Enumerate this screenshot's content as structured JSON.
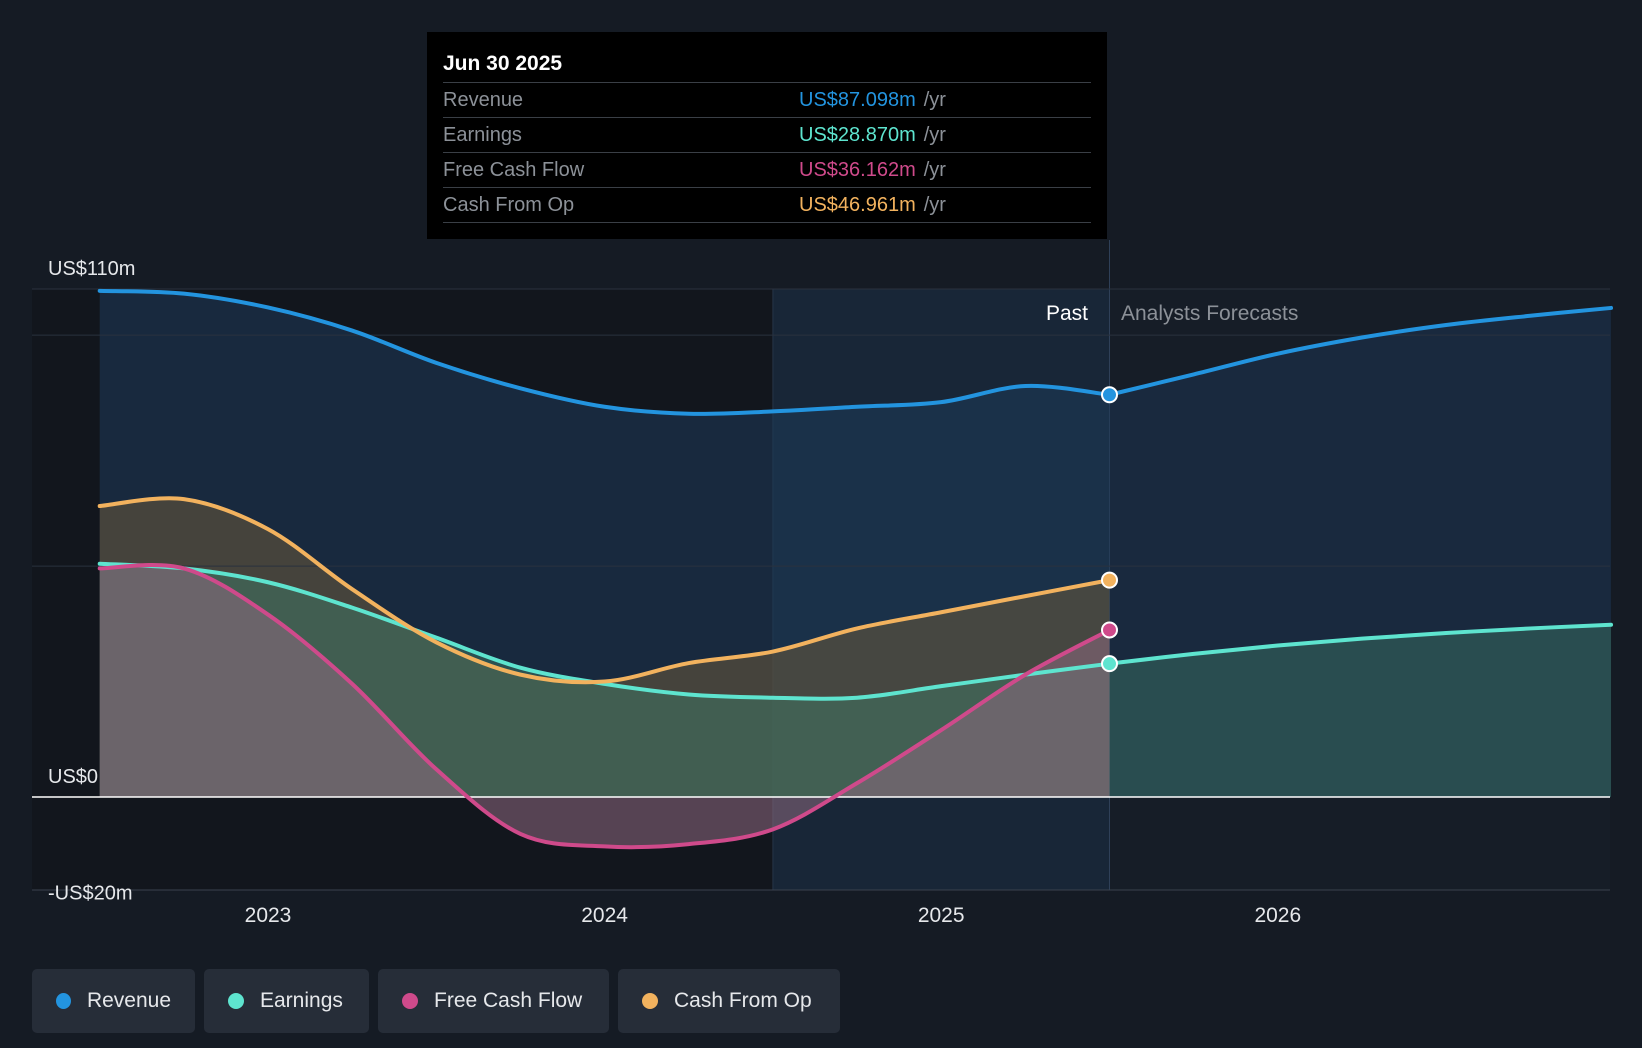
{
  "tooltip": {
    "date": "Jun 30 2025",
    "unit": "/yr",
    "rows": [
      {
        "label": "Revenue",
        "value": "US$87.098m",
        "color": "#2394df"
      },
      {
        "label": "Earnings",
        "value": "US$28.870m",
        "color": "#5ee4cf"
      },
      {
        "label": "Free Cash Flow",
        "value": "US$36.162m",
        "color": "#cf4a8b"
      },
      {
        "label": "Cash From Op",
        "value": "US$46.961m",
        "color": "#f2b25e"
      }
    ]
  },
  "labels": {
    "past": "Past",
    "forecast": "Analysts Forecasts"
  },
  "legend": [
    {
      "label": "Revenue",
      "color": "#2394df"
    },
    {
      "label": "Earnings",
      "color": "#5ee4cf"
    },
    {
      "label": "Free Cash Flow",
      "color": "#cf4a8b"
    },
    {
      "label": "Cash From Op",
      "color": "#f2b25e"
    }
  ],
  "chart_data": {
    "type": "line",
    "y_tick_labels": [
      {
        "value": 110,
        "label": "US$110m"
      },
      {
        "value": 0,
        "label": "US$0"
      },
      {
        "value": -20,
        "label": "-US$20m"
      }
    ],
    "x_ticks": [
      2023,
      2024,
      2025,
      2026
    ],
    "xlim": [
      2022.3,
      2026.99
    ],
    "ylim": [
      -20,
      110
    ],
    "past_end": 2025.5,
    "highlight_start": 2024.5,
    "series": [
      {
        "name": "Revenue",
        "color": "#2394df",
        "points": [
          [
            2022.5,
            109.6
          ],
          [
            2022.75,
            109
          ],
          [
            2023.0,
            106
          ],
          [
            2023.25,
            101
          ],
          [
            2023.5,
            94
          ],
          [
            2023.75,
            88.5
          ],
          [
            2024.0,
            84.5
          ],
          [
            2024.25,
            83
          ],
          [
            2024.5,
            83.5
          ],
          [
            2024.75,
            84.5
          ],
          [
            2025.0,
            85.5
          ],
          [
            2025.25,
            89
          ],
          [
            2025.5,
            87.1
          ]
        ],
        "forecast": [
          [
            2025.5,
            87.1
          ],
          [
            2025.75,
            91.5
          ],
          [
            2026.0,
            96
          ],
          [
            2026.25,
            99.5
          ],
          [
            2026.5,
            102.2
          ],
          [
            2026.75,
            104.2
          ],
          [
            2026.99,
            105.9
          ]
        ]
      },
      {
        "name": "Earnings",
        "color": "#5ee4cf",
        "points": [
          [
            2022.5,
            50.5
          ],
          [
            2022.75,
            49.5
          ],
          [
            2023.0,
            46.5
          ],
          [
            2023.25,
            41
          ],
          [
            2023.5,
            34.5
          ],
          [
            2023.75,
            28
          ],
          [
            2024.0,
            24.5
          ],
          [
            2024.25,
            22.2
          ],
          [
            2024.5,
            21.5
          ],
          [
            2024.75,
            21.5
          ],
          [
            2025.0,
            24
          ],
          [
            2025.25,
            26.5
          ],
          [
            2025.5,
            28.87
          ]
        ],
        "forecast": [
          [
            2025.5,
            28.87
          ],
          [
            2025.75,
            31
          ],
          [
            2026.0,
            32.8
          ],
          [
            2026.25,
            34.3
          ],
          [
            2026.5,
            35.5
          ],
          [
            2026.75,
            36.5
          ],
          [
            2026.99,
            37.3
          ]
        ]
      },
      {
        "name": "Free Cash Flow",
        "color": "#cf4a8b",
        "points": [
          [
            2022.5,
            49.5
          ],
          [
            2022.75,
            49.5
          ],
          [
            2023.0,
            39.5
          ],
          [
            2023.25,
            24.5
          ],
          [
            2023.5,
            6
          ],
          [
            2023.75,
            -8
          ],
          [
            2024.0,
            -10.7
          ],
          [
            2024.25,
            -10.2
          ],
          [
            2024.5,
            -7
          ],
          [
            2024.75,
            3
          ],
          [
            2025.0,
            14.5
          ],
          [
            2025.25,
            26.5
          ],
          [
            2025.5,
            36.16
          ]
        ],
        "forecast": []
      },
      {
        "name": "Cash From Op",
        "color": "#f2b25e",
        "points": [
          [
            2022.5,
            63
          ],
          [
            2022.75,
            64.5
          ],
          [
            2023.0,
            58
          ],
          [
            2023.25,
            45
          ],
          [
            2023.5,
            33.5
          ],
          [
            2023.75,
            26.5
          ],
          [
            2024.0,
            25
          ],
          [
            2024.25,
            29
          ],
          [
            2024.5,
            31.5
          ],
          [
            2024.75,
            36.5
          ],
          [
            2025.0,
            40
          ],
          [
            2025.25,
            43.5
          ],
          [
            2025.5,
            46.96
          ]
        ],
        "forecast": []
      }
    ]
  }
}
